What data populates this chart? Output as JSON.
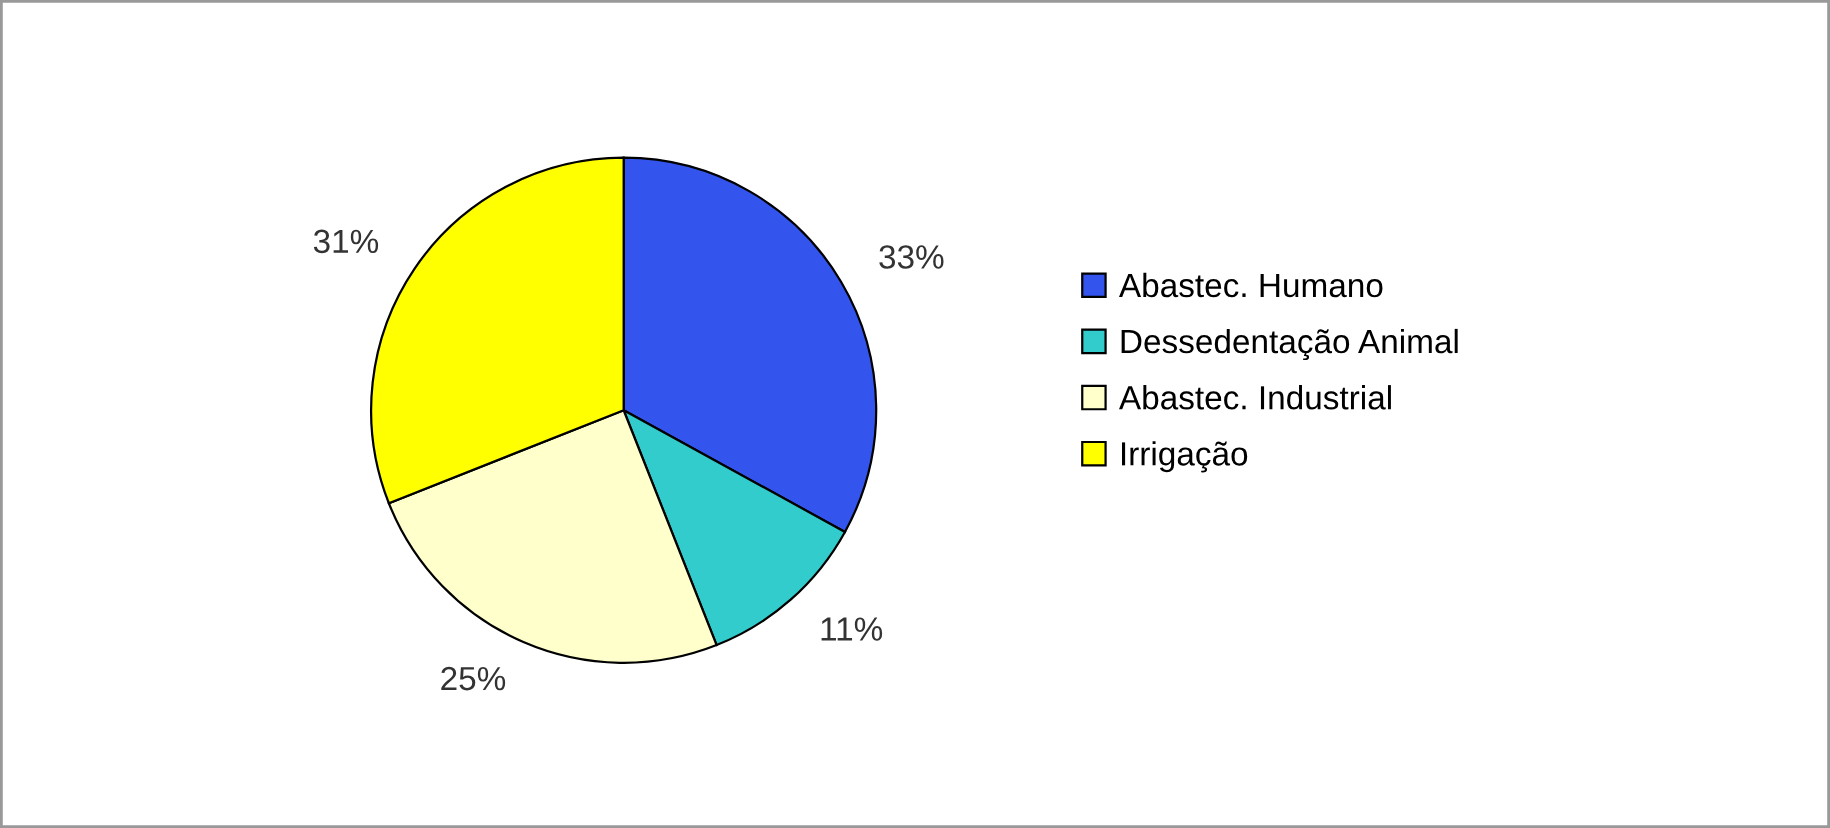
{
  "chart_data": {
    "type": "pie",
    "categories": [
      "Abastec. Humano",
      "Dessedentação Animal",
      "Abastec. Industrial",
      "Irrigação"
    ],
    "values": [
      33,
      11,
      25,
      31
    ],
    "colors": [
      "#3355ee",
      "#33cccc",
      "#ffffcc",
      "#ffff00"
    ],
    "value_labels": [
      "33%",
      "11%",
      "25%",
      "31%"
    ],
    "legend": "right"
  }
}
